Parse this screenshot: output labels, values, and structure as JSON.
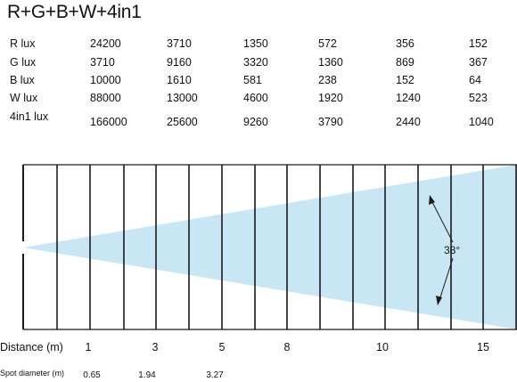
{
  "chart_data": {
    "type": "table",
    "title": "R+G+B+W+4in1",
    "lux_table": [
      {
        "label": "R  lux",
        "values": [
          "24200",
          "3710",
          "1350",
          "572",
          "356",
          "152"
        ]
      },
      {
        "label": "G  lux",
        "values": [
          "3710",
          "9160",
          "3320",
          "1360",
          "869",
          "367"
        ]
      },
      {
        "label": "B  lux",
        "values": [
          "10000",
          "1610",
          "581",
          "238",
          "152",
          "64"
        ]
      },
      {
        "label": "W  lux",
        "values": [
          "88000",
          "13000",
          "4600",
          "1920",
          "1240",
          "523"
        ]
      },
      {
        "label": "4in1  lux",
        "values": [
          "166000",
          "25600",
          "9260",
          "3790",
          "2440",
          "1040"
        ]
      }
    ],
    "beam": {
      "angle_label": "38°",
      "distance_label": "Distance (m)",
      "distance_ticks": [
        "1",
        "3",
        "5",
        "8",
        "10",
        "15"
      ],
      "spot_label": "Spot diameter (m)",
      "spot_values": [
        "0.65",
        "1.94",
        "3.27"
      ],
      "beam_color": "#c9e6f4",
      "line_color": "#1a1a1a"
    }
  }
}
